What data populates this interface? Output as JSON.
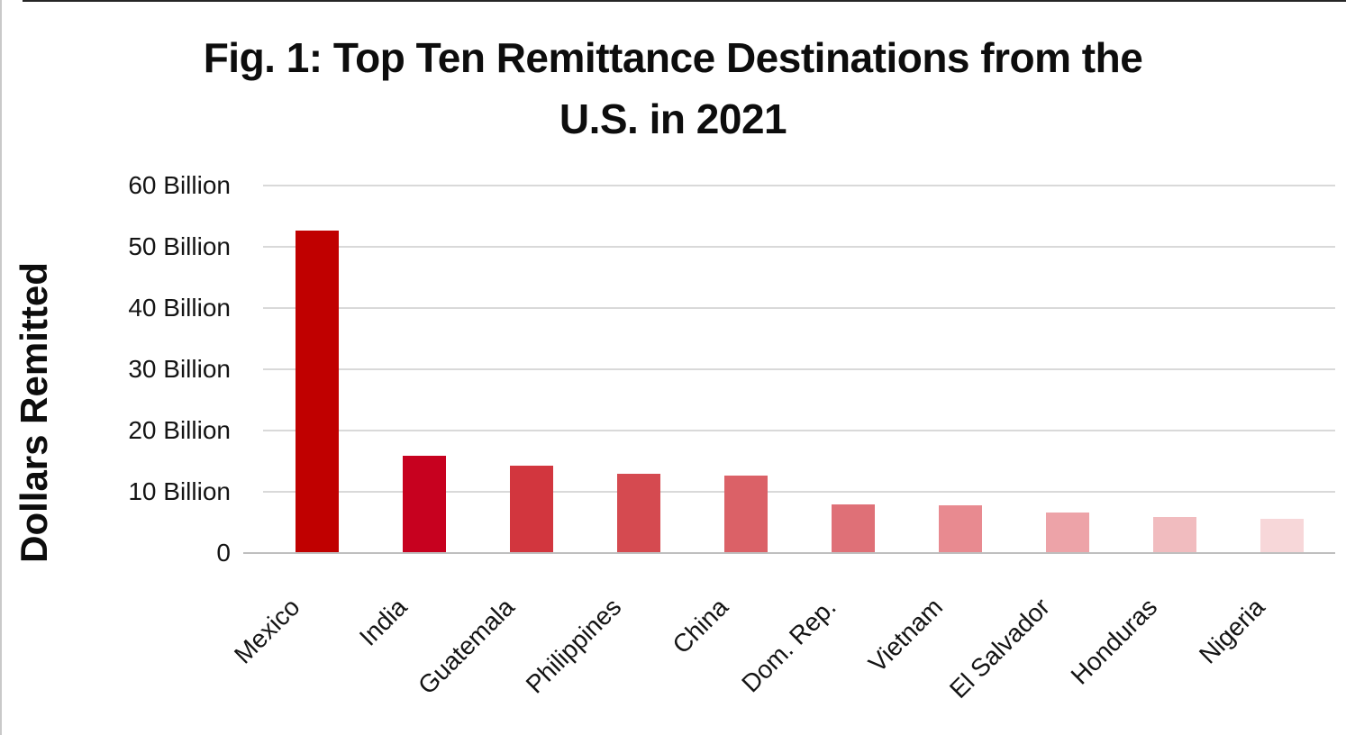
{
  "figure": {
    "title_line1": "Fig. 1: Top Ten Remittance Destinations from the",
    "title_line2": "U.S. in 2021"
  },
  "chart_data": {
    "type": "bar",
    "title": "Fig. 1: Top Ten Remittance Destinations from the U.S. in 2021",
    "xlabel": "",
    "ylabel": "Dollars Remitted",
    "unit": "US dollars (billions)",
    "categories": [
      "Mexico",
      "India",
      "Guatemala",
      "Philippines",
      "China",
      "Dom. Rep.",
      "Vietnam",
      "El Salvador",
      "Honduras",
      "Nigeria"
    ],
    "values": [
      52.7,
      15.9,
      14.2,
      12.9,
      12.7,
      8.0,
      7.8,
      6.6,
      5.9,
      5.6
    ],
    "ylim": [
      0,
      60
    ],
    "ytick_labels": [
      "60 Billion",
      "50 Billion",
      "40 Billion",
      "30 Billion",
      "20 Billion",
      "10 Billion",
      "0"
    ],
    "bar_colors": [
      "#c00000",
      "#c7011f",
      "#d2363e",
      "#d54a50",
      "#db6167",
      "#df7077",
      "#e88a90",
      "#eda3a8",
      "#f1bcbf",
      "#f7d7d9"
    ],
    "grid": true,
    "gridline_color": "#d9d9d9",
    "legend": false,
    "x_label_rotation_deg": 45
  }
}
